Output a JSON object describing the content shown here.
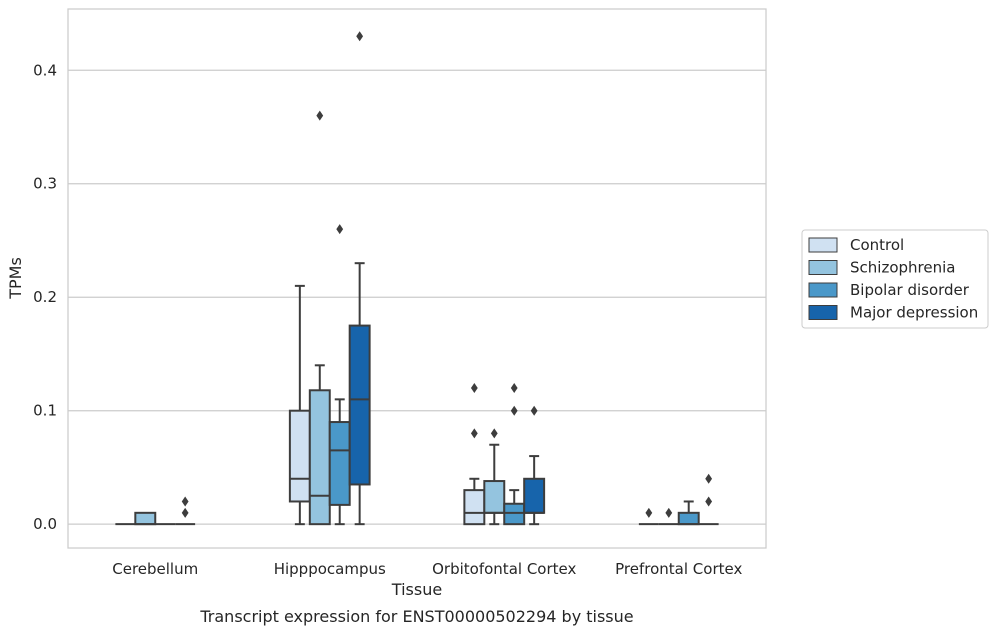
{
  "chart_data": {
    "type": "box",
    "title": "",
    "caption": "Transcript expression for ENST00000502294 by tissue",
    "xlabel": "Tissue",
    "ylabel": "TPMs",
    "ylim": [
      -0.021,
      0.454
    ],
    "yticks": [
      0.0,
      0.1,
      0.2,
      0.3,
      0.4
    ],
    "ytick_labels": [
      "0.0",
      "0.1",
      "0.2",
      "0.3",
      "0.4"
    ],
    "grid": "horizontal",
    "legend_position": "right",
    "categories": [
      "Cerebellum",
      "Hipppocampus",
      "Orbitofontal Cortex",
      "Prefrontal Cortex"
    ],
    "series": [
      {
        "name": "Control",
        "color": "#d0e1f2",
        "boxes": [
          {
            "q1": 0.0,
            "median": 0.0,
            "q3": 0.0,
            "whisker_low": 0.0,
            "whisker_high": 0.0,
            "outliers": []
          },
          {
            "q1": 0.02,
            "median": 0.04,
            "q3": 0.1,
            "whisker_low": 0.0,
            "whisker_high": 0.21,
            "outliers": []
          },
          {
            "q1": 0.0,
            "median": 0.01,
            "q3": 0.03,
            "whisker_low": 0.0,
            "whisker_high": 0.04,
            "outliers": [
              0.08,
              0.12
            ]
          },
          {
            "q1": 0.0,
            "median": 0.0,
            "q3": 0.0,
            "whisker_low": 0.0,
            "whisker_high": 0.0,
            "outliers": [
              0.01
            ]
          }
        ]
      },
      {
        "name": "Schizophrenia",
        "color": "#94c4df",
        "boxes": [
          {
            "q1": 0.0,
            "median": 0.0,
            "q3": 0.01,
            "whisker_low": 0.0,
            "whisker_high": 0.01,
            "outliers": []
          },
          {
            "q1": 0.0,
            "median": 0.025,
            "q3": 0.118,
            "whisker_low": 0.0,
            "whisker_high": 0.14,
            "outliers": [
              0.36
            ]
          },
          {
            "q1": 0.01,
            "median": 0.01,
            "q3": 0.038,
            "whisker_low": 0.0,
            "whisker_high": 0.07,
            "outliers": [
              0.08
            ]
          },
          {
            "q1": 0.0,
            "median": 0.0,
            "q3": 0.0,
            "whisker_low": 0.0,
            "whisker_high": 0.0,
            "outliers": [
              0.01
            ]
          }
        ]
      },
      {
        "name": "Bipolar disorder",
        "color": "#4a98c9",
        "boxes": [
          {
            "q1": 0.0,
            "median": 0.0,
            "q3": 0.0,
            "whisker_low": 0.0,
            "whisker_high": 0.0,
            "outliers": []
          },
          {
            "q1": 0.017,
            "median": 0.065,
            "q3": 0.09,
            "whisker_low": 0.0,
            "whisker_high": 0.11,
            "outliers": [
              0.26
            ]
          },
          {
            "q1": 0.0,
            "median": 0.01,
            "q3": 0.018,
            "whisker_low": 0.0,
            "whisker_high": 0.03,
            "outliers": [
              0.1,
              0.12
            ]
          },
          {
            "q1": 0.0,
            "median": 0.0,
            "q3": 0.01,
            "whisker_low": 0.0,
            "whisker_high": 0.02,
            "outliers": []
          }
        ]
      },
      {
        "name": "Major depression",
        "color": "#1764ab",
        "boxes": [
          {
            "q1": 0.0,
            "median": 0.0,
            "q3": 0.0,
            "whisker_low": 0.0,
            "whisker_high": 0.0,
            "outliers": [
              0.01,
              0.02
            ]
          },
          {
            "q1": 0.035,
            "median": 0.11,
            "q3": 0.175,
            "whisker_low": 0.0,
            "whisker_high": 0.23,
            "outliers": [
              0.43
            ]
          },
          {
            "q1": 0.01,
            "median": 0.01,
            "q3": 0.04,
            "whisker_low": 0.0,
            "whisker_high": 0.06,
            "outliers": [
              0.1
            ]
          },
          {
            "q1": 0.0,
            "median": 0.0,
            "q3": 0.0,
            "whisker_low": 0.0,
            "whisker_high": 0.0,
            "outliers": [
              0.02,
              0.04
            ]
          }
        ]
      }
    ]
  }
}
